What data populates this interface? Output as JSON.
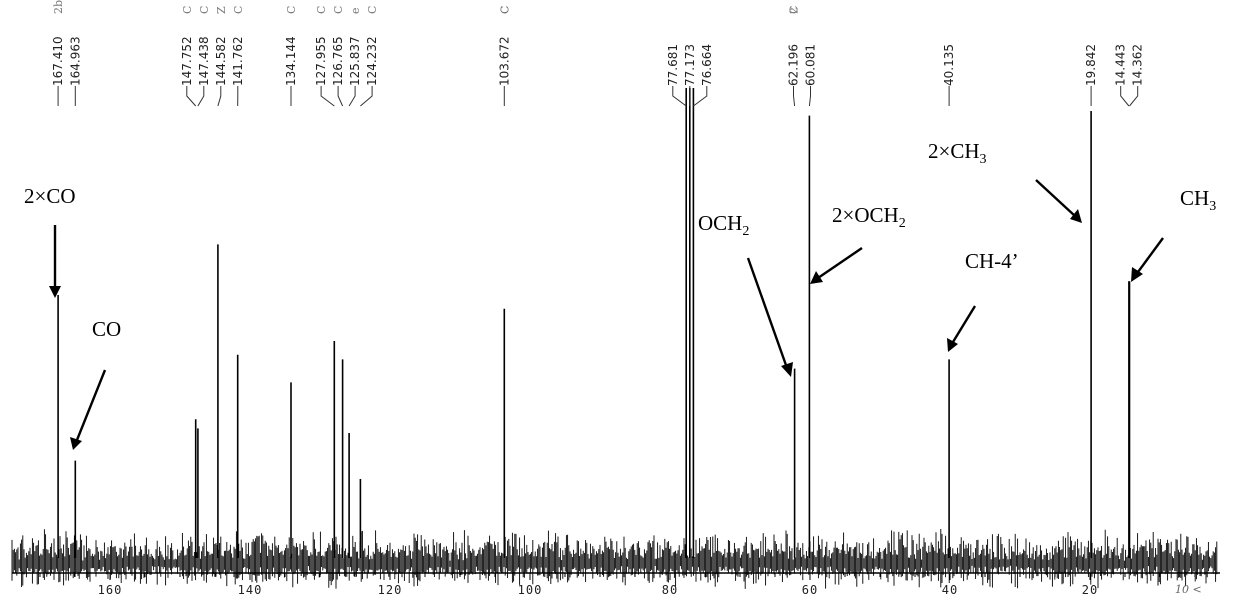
{
  "chart_data": {
    "type": "line",
    "title": "",
    "xlabel": "",
    "ylabel": "",
    "x_reversed": true,
    "xlim": [
      175,
      2
    ],
    "ylim": [
      0,
      100
    ],
    "x_ticks": [
      160,
      140,
      120,
      100,
      80,
      60,
      40,
      20
    ],
    "x_tick_labels": [
      "160",
      "140",
      "120",
      "100",
      "80",
      "60",
      "40",
      "20"
    ],
    "stray_axis_mark": "10 <",
    "peaks": [
      {
        "label": "167.410",
        "ppm": 167.41,
        "intensity": 55
      },
      {
        "label": "164.963",
        "ppm": 164.963,
        "intensity": 19
      },
      {
        "label": "147.752",
        "ppm": 147.752,
        "intensity": 28
      },
      {
        "label": "147.438",
        "ppm": 147.438,
        "intensity": 26
      },
      {
        "label": "144.582",
        "ppm": 144.582,
        "intensity": 66
      },
      {
        "label": "141.762",
        "ppm": 141.762,
        "intensity": 42
      },
      {
        "label": "134.144",
        "ppm": 134.144,
        "intensity": 36
      },
      {
        "label": "127.955",
        "ppm": 127.955,
        "intensity": 45
      },
      {
        "label": "126.765",
        "ppm": 126.765,
        "intensity": 41
      },
      {
        "label": "125.837",
        "ppm": 125.837,
        "intensity": 25
      },
      {
        "label": "124.232",
        "ppm": 124.232,
        "intensity": 15
      },
      {
        "label": "103.672",
        "ppm": 103.672,
        "intensity": 52
      },
      {
        "label": "77.681",
        "ppm": 77.681,
        "intensity": 100
      },
      {
        "label": "77.173",
        "ppm": 77.173,
        "intensity": 100
      },
      {
        "label": "76.664",
        "ppm": 76.664,
        "intensity": 100
      },
      {
        "label": "62.196",
        "ppm": 62.196,
        "intensity": 39
      },
      {
        "label": "60.081",
        "ppm": 60.081,
        "intensity": 94
      },
      {
        "label": "40.135",
        "ppm": 40.135,
        "intensity": 41
      },
      {
        "label": "19.842",
        "ppm": 19.842,
        "intensity": 95
      },
      {
        "label": "14.443",
        "ppm": 14.443,
        "intensity": 58
      },
      {
        "label": "14.362",
        "ppm": 14.362,
        "intensity": 58
      }
    ],
    "peak_label_marks": [
      "2bC",
      "C",
      "C",
      "Z",
      "C",
      "C",
      "C",
      "C",
      "e",
      "C",
      "C",
      "C",
      "C",
      "2"
    ],
    "annotations": [
      {
        "main": "2×CO",
        "sub": "",
        "tail": ""
      },
      {
        "main": "CO",
        "sub": "",
        "tail": ""
      },
      {
        "main": "OCH",
        "sub": "2",
        "tail": ""
      },
      {
        "main": "2×OCH",
        "sub": "2",
        "tail": ""
      },
      {
        "main": "CH-4’",
        "sub": "",
        "tail": ""
      },
      {
        "main": "2×CH",
        "sub": "3",
        "tail": ""
      },
      {
        "main": "CH",
        "sub": "3",
        "tail": ""
      }
    ],
    "grid": false,
    "legend": "none"
  }
}
